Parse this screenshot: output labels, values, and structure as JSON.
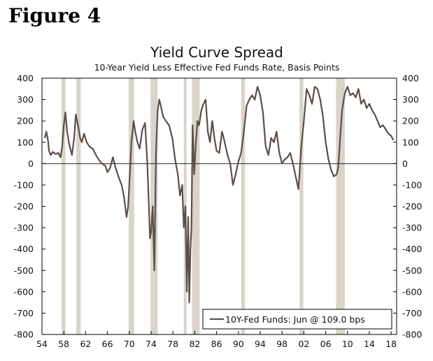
{
  "figure_label": "Figure 4",
  "chart_data": {
    "type": "line",
    "title": "Yield Curve Spread",
    "subtitle": "10-Year Yield Less Effective Fed Funds Rate, Basis Points",
    "xlabel": "",
    "ylabel": "",
    "xlim": [
      1954,
      2019
    ],
    "ylim": [
      -800,
      400
    ],
    "y_ticks": [
      400,
      300,
      200,
      100,
      0,
      -100,
      -200,
      -300,
      -400,
      -500,
      -600,
      -700,
      -800
    ],
    "x_ticks": [
      1954,
      1958,
      1962,
      1966,
      1970,
      1974,
      1978,
      1982,
      1986,
      1990,
      1994,
      1998,
      2002,
      2006,
      2010,
      2014,
      2018
    ],
    "x_tick_labels": [
      "54",
      "58",
      "62",
      "66",
      "70",
      "74",
      "78",
      "82",
      "86",
      "90",
      "94",
      "98",
      "02",
      "06",
      "10",
      "14",
      "18"
    ],
    "grid": false,
    "zero_line": true,
    "legend_position": "bottom-right",
    "line_color": "#5b4f47",
    "recession_color": "#d9d4c8",
    "recessions": [
      [
        1957.6,
        1958.3
      ],
      [
        1960.3,
        1961.1
      ],
      [
        1969.9,
        1970.9
      ],
      [
        1973.9,
        1975.2
      ],
      [
        1980.0,
        1980.5
      ],
      [
        1981.5,
        1982.9
      ],
      [
        1990.5,
        1991.2
      ],
      [
        2001.2,
        2001.9
      ],
      [
        2007.9,
        2009.5
      ]
    ],
    "series": [
      {
        "name": "10Y-Fed Funds: Jun @ 109.0 bps",
        "x": [
          1954.5,
          1954.8,
          1955.1,
          1955.3,
          1955.6,
          1956.0,
          1956.5,
          1957.0,
          1957.4,
          1957.7,
          1958.0,
          1958.3,
          1958.6,
          1959.0,
          1959.5,
          1959.9,
          1960.2,
          1960.6,
          1961.0,
          1961.3,
          1961.7,
          1962.2,
          1962.7,
          1963.3,
          1963.9,
          1964.5,
          1965.0,
          1965.6,
          1966.0,
          1966.5,
          1967.0,
          1967.5,
          1968.0,
          1968.6,
          1969.0,
          1969.5,
          1969.8,
          1970.1,
          1970.4,
          1970.8,
          1971.1,
          1971.5,
          1971.9,
          1972.4,
          1972.9,
          1973.3,
          1973.6,
          1973.8,
          1974.0,
          1974.3,
          1974.6,
          1974.9,
          1975.2,
          1975.5,
          1975.8,
          1976.2,
          1976.7,
          1977.3,
          1977.9,
          1978.4,
          1978.9,
          1979.3,
          1979.7,
          1980.0,
          1980.3,
          1980.55,
          1980.8,
          1981.0,
          1981.2,
          1981.4,
          1981.6,
          1981.9,
          1982.2,
          1982.5,
          1982.8,
          1983.2,
          1983.6,
          1984.0,
          1984.4,
          1984.8,
          1985.2,
          1985.6,
          1986.0,
          1986.5,
          1987.0,
          1987.5,
          1988.0,
          1988.5,
          1989.0,
          1989.5,
          1990.0,
          1990.5,
          1991.0,
          1991.5,
          1992.0,
          1992.5,
          1993.0,
          1993.5,
          1994.0,
          1994.5,
          1995.0,
          1995.5,
          1996.0,
          1996.5,
          1997.0,
          1997.5,
          1998.0,
          1998.5,
          1999.0,
          1999.5,
          2000.0,
          2000.5,
          2001.0,
          2001.5,
          2002.0,
          2002.5,
          2003.0,
          2003.5,
          2004.0,
          2004.5,
          2005.0,
          2005.5,
          2006.0,
          2006.5,
          2007.0,
          2007.5,
          2008.0,
          2008.3,
          2008.6,
          2009.0,
          2009.5,
          2010.0,
          2010.5,
          2011.0,
          2011.5,
          2012.0,
          2012.5,
          2013.0,
          2013.5,
          2014.0,
          2014.5,
          2015.0,
          2015.5,
          2016.0,
          2016.5,
          2017.0,
          2017.5,
          2018.0,
          2018.4
        ],
        "values": [
          120,
          150,
          110,
          60,
          40,
          55,
          45,
          50,
          30,
          80,
          180,
          240,
          150,
          90,
          40,
          120,
          230,
          180,
          120,
          100,
          140,
          100,
          80,
          70,
          40,
          15,
          0,
          -10,
          -40,
          -20,
          30,
          -20,
          -60,
          -100,
          -150,
          -250,
          -200,
          -50,
          100,
          200,
          150,
          100,
          70,
          160,
          190,
          10,
          -200,
          -350,
          -320,
          -200,
          -500,
          50,
          250,
          300,
          270,
          220,
          200,
          180,
          120,
          20,
          -50,
          -150,
          -100,
          -300,
          -200,
          -600,
          -250,
          -650,
          -400,
          -300,
          180,
          -50,
          100,
          200,
          180,
          250,
          280,
          300,
          150,
          100,
          200,
          120,
          60,
          50,
          150,
          100,
          40,
          0,
          -100,
          -50,
          10,
          50,
          150,
          270,
          300,
          320,
          300,
          360,
          320,
          240,
          80,
          40,
          120,
          100,
          150,
          50,
          0,
          20,
          30,
          50,
          0,
          -60,
          -120,
          70,
          200,
          350,
          320,
          280,
          360,
          350,
          300,
          220,
          100,
          20,
          -30,
          -60,
          -50,
          -20,
          100,
          250,
          330,
          360,
          320,
          330,
          310,
          350,
          280,
          300,
          260,
          280,
          250,
          230,
          200,
          170,
          180,
          160,
          140,
          130,
          110
        ]
      }
    ]
  }
}
